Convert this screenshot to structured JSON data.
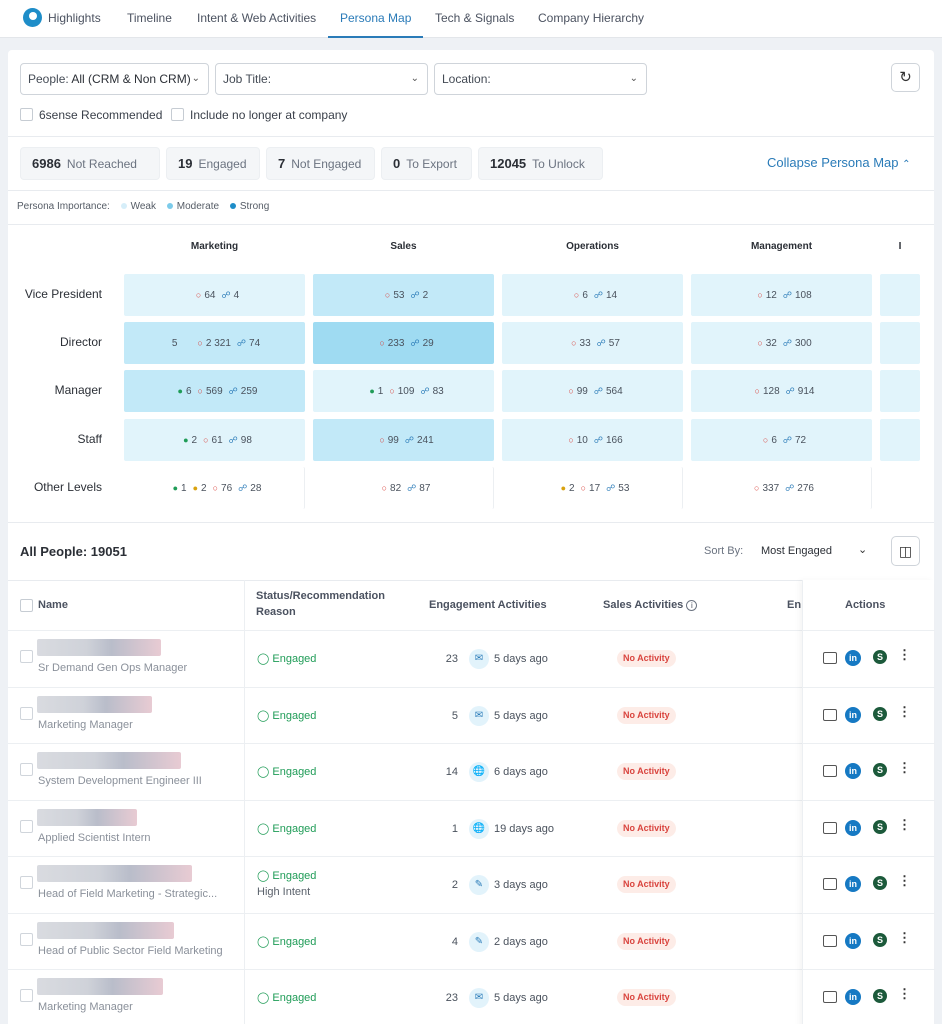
{
  "nav": {
    "tabs": [
      "Highlights",
      "Timeline",
      "Intent & Web Activities",
      "Persona Map",
      "Tech & Signals",
      "Company Hierarchy"
    ],
    "active": "Persona Map"
  },
  "filters": {
    "people_prefix": "People:",
    "people_value": "All (CRM & Non CRM)",
    "job_title": "Job Title:",
    "location": "Location:",
    "recommended": "6sense Recommended",
    "include_former": "Include no longer at company"
  },
  "stats": [
    {
      "value": "6986",
      "label": "Not Reached"
    },
    {
      "value": "19",
      "label": "Engaged"
    },
    {
      "value": "7",
      "label": "Not Engaged"
    },
    {
      "value": "0",
      "label": "To Export"
    },
    {
      "value": "12045",
      "label": "To Unlock"
    }
  ],
  "collapse_label": "Collapse Persona Map",
  "legend": {
    "title": "Persona Importance:",
    "items": [
      {
        "label": "Weak",
        "color": "#d6eef9"
      },
      {
        "label": "Moderate",
        "color": "#7ccbea"
      },
      {
        "label": "Strong",
        "color": "#1e8dc8"
      }
    ]
  },
  "persona_map": {
    "columns": [
      "Marketing",
      "Sales",
      "Operations",
      "Management",
      "I"
    ],
    "rows": [
      {
        "level": "Vice President",
        "cells": [
          {
            "shade": "#e1f4fb",
            "g": "",
            "y": "",
            "r": "64",
            "lock": "4"
          },
          {
            "shade": "#c2e9f8",
            "g": "",
            "y": "",
            "r": "53",
            "lock": "2"
          },
          {
            "shade": "#e1f4fb",
            "g": "",
            "y": "",
            "r": "6",
            "lock": "14"
          },
          {
            "shade": "#e1f4fb",
            "g": "",
            "y": "",
            "r": "12",
            "lock": "108"
          }
        ]
      },
      {
        "level": "Director",
        "cells": [
          {
            "shade": "#c2e9f8",
            "g": "",
            "y": "",
            "pre": "5",
            "r": "2 321",
            "lock": "74"
          },
          {
            "shade": "#9fdbf2",
            "g": "",
            "y": "",
            "r": "233",
            "lock": "29"
          },
          {
            "shade": "#e1f4fb",
            "g": "",
            "y": "",
            "r": "33",
            "lock": "57"
          },
          {
            "shade": "#e1f4fb",
            "g": "",
            "y": "",
            "r": "32",
            "lock": "300"
          }
        ]
      },
      {
        "level": "Manager",
        "cells": [
          {
            "shade": "#c2e9f8",
            "g": "6",
            "y": "",
            "r": "569",
            "lock": "259"
          },
          {
            "shade": "#e1f4fb",
            "g": "1",
            "y": "",
            "r": "109",
            "lock": "83"
          },
          {
            "shade": "#e1f4fb",
            "g": "",
            "y": "",
            "r": "99",
            "lock": "564"
          },
          {
            "shade": "#e1f4fb",
            "g": "",
            "y": "",
            "r": "128",
            "lock": "914"
          }
        ]
      },
      {
        "level": "Staff",
        "cells": [
          {
            "shade": "#e1f4fb",
            "g": "2",
            "y": "",
            "r": "61",
            "lock": "98"
          },
          {
            "shade": "#c2e9f8",
            "g": "",
            "y": "",
            "r": "99",
            "lock": "241"
          },
          {
            "shade": "#e1f4fb",
            "g": "",
            "y": "",
            "r": "10",
            "lock": "166"
          },
          {
            "shade": "#e1f4fb",
            "g": "",
            "y": "",
            "r": "6",
            "lock": "72"
          }
        ]
      },
      {
        "level": "Other Levels",
        "cells": [
          {
            "shade": "#ffffff",
            "g": "1",
            "y": "2",
            "r": "76",
            "lock": "28"
          },
          {
            "shade": "#ffffff",
            "g": "",
            "y": "",
            "r": "82",
            "lock": "87"
          },
          {
            "shade": "#ffffff",
            "g": "",
            "y": "2",
            "r": "17",
            "lock": "53"
          },
          {
            "shade": "#ffffff",
            "g": "",
            "y": "",
            "r": "337",
            "lock": "276"
          }
        ]
      }
    ]
  },
  "people": {
    "title": "All People: 19051",
    "sort_label": "Sort By:",
    "sort_value": "Most Engaged",
    "headers": {
      "name": "Name",
      "status_line1": "Status/Recommendation",
      "status_line2": "Reason",
      "engagement": "Engagement Activities",
      "sales": "Sales Activities",
      "truncated": "En",
      "actions": "Actions"
    },
    "rows": [
      {
        "title": "Sr Demand Gen Ops Manager",
        "status": "Engaged",
        "reason": "",
        "count": "23",
        "channel": "email",
        "ago": "5 days ago",
        "sales": "No Activity"
      },
      {
        "title": "Marketing Manager",
        "status": "Engaged",
        "reason": "",
        "count": "5",
        "channel": "email",
        "ago": "5 days ago",
        "sales": "No Activity"
      },
      {
        "title": "System Development Engineer III",
        "status": "Engaged",
        "reason": "",
        "count": "14",
        "channel": "web",
        "ago": "6 days ago",
        "sales": "No Activity"
      },
      {
        "title": "Applied Scientist Intern",
        "status": "Engaged",
        "reason": "",
        "count": "1",
        "channel": "web",
        "ago": "19 days ago",
        "sales": "No Activity"
      },
      {
        "title": "Head of Field Marketing - Strategic...",
        "status": "Engaged",
        "reason": "High Intent",
        "count": "2",
        "channel": "pen",
        "ago": "3 days ago",
        "sales": "No Activity"
      },
      {
        "title": "Head of Public Sector Field Marketing",
        "status": "Engaged",
        "reason": "",
        "count": "4",
        "channel": "pen",
        "ago": "2 days ago",
        "sales": "No Activity"
      },
      {
        "title": "Marketing Manager",
        "status": "Engaged",
        "reason": "",
        "count": "23",
        "channel": "email",
        "ago": "5 days ago",
        "sales": "No Activity"
      }
    ]
  }
}
